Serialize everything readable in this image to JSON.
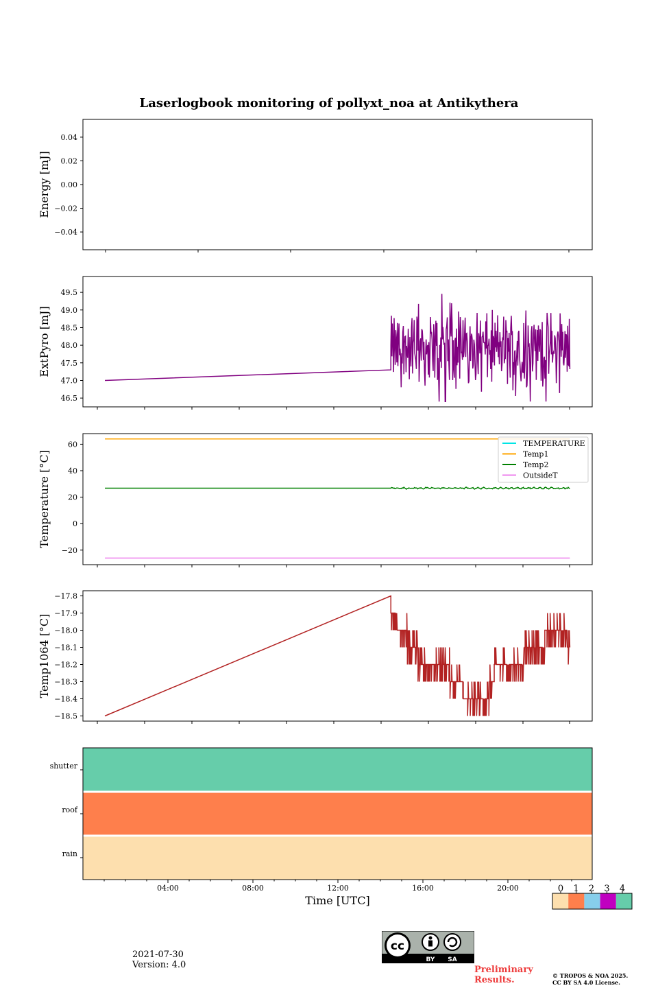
{
  "figure_title": "Laserlogbook monitoring of pollyxt_noa at Antikythera",
  "footer": {
    "date": "2021-07-30",
    "version": "Version: 4.0",
    "preliminary_line1": "Preliminary",
    "preliminary_line2": "Results.",
    "copyright_line1": "© TROPOS & NOA 2025.",
    "copyright_line2": "CC BY SA 4.0 License.",
    "license_badge": {
      "icon": "cc-by-sa-icon",
      "labels": [
        "BY",
        "SA"
      ]
    }
  },
  "colors": {
    "extpyro": "#800080",
    "temperature": "#00e5e5",
    "temp1": "#ffa500",
    "temp2": "#008000",
    "outsideT": "#ee82ee",
    "temp1064": "#b22222",
    "status_0": "#fddfae",
    "status_1": "#fe7f4c",
    "status_2": "#87ceeb",
    "status_3": "#c000c0",
    "status_4": "#66cdaa"
  },
  "chart_data": [
    {
      "type": "line",
      "name": "energy",
      "ylabel": "Energy [mJ]",
      "ylim": [
        -0.055,
        0.055
      ],
      "yticks": [
        0.04,
        0.02,
        0.0,
        -0.02,
        -0.04
      ],
      "ytick_labels": [
        "0.04",
        "0.02",
        "0.00",
        "−0.02",
        "−0.04"
      ],
      "xticks_hours": [
        4,
        8,
        12,
        16,
        20
      ],
      "series": []
    },
    {
      "type": "line",
      "name": "extpyro",
      "ylabel": "ExtPyro [mJ]",
      "ylim": [
        46.25,
        49.95
      ],
      "yticks": [
        49.5,
        49.0,
        48.5,
        48.0,
        47.5,
        47.0,
        46.5
      ],
      "ytick_labels": [
        "49.5",
        "49.0",
        "48.5",
        "48.0",
        "47.5",
        "47.0",
        "46.5"
      ],
      "x_hours_range": [
        1.08,
        22.9
      ],
      "start": {
        "x_hour": 1.08,
        "y": 47.0
      },
      "gap_end": {
        "x_hour": 14.5,
        "y": 47.3
      },
      "noisy_segment": {
        "x_start_hour": 14.5,
        "x_end_hour": 22.9,
        "mean": 47.9,
        "min": 46.4,
        "max": 49.8
      }
    },
    {
      "type": "line",
      "name": "temperature",
      "ylabel": "Temperature [°C]",
      "ylim": [
        -31,
        68
      ],
      "yticks": [
        60,
        40,
        20,
        0,
        -20
      ],
      "ytick_labels": [
        "60",
        "40",
        "20",
        "0",
        "−20"
      ],
      "legend_position": "top-right",
      "series": [
        {
          "name": "TEMPERATURE",
          "color_key": "temperature",
          "values": []
        },
        {
          "name": "Temp1",
          "color_key": "temp1",
          "x_hours": [
            1.08,
            22.9
          ],
          "values": [
            64,
            64
          ]
        },
        {
          "name": "Temp2",
          "color_key": "temp2",
          "x_hours": [
            1.08,
            14.5,
            22.9
          ],
          "values": [
            26.8,
            26.8,
            26.8
          ],
          "noise": 0.8
        },
        {
          "name": "OutsideT",
          "color_key": "outsideT",
          "x_hours": [
            1.08,
            22.9
          ],
          "values": [
            -26,
            -26
          ]
        }
      ]
    },
    {
      "type": "line",
      "name": "temp1064",
      "ylabel": "Temp1064 [°C]",
      "ylim": [
        -18.53,
        -17.77
      ],
      "yticks": [
        -17.8,
        -17.9,
        -18.0,
        -18.1,
        -18.2,
        -18.3,
        -18.4,
        -18.5
      ],
      "ytick_labels": [
        "−17.8",
        "−17.9",
        "−18.0",
        "−18.1",
        "−18.2",
        "−18.3",
        "−18.4",
        "−18.5"
      ],
      "trend_points": [
        [
          1.08,
          -18.5
        ],
        [
          14.5,
          -17.8
        ],
        [
          14.5,
          -17.9
        ],
        [
          15.0,
          -18.0
        ],
        [
          15.5,
          -18.1
        ],
        [
          16.0,
          -18.2
        ],
        [
          17.0,
          -18.2
        ],
        [
          17.5,
          -18.3
        ],
        [
          18.3,
          -18.4
        ],
        [
          19.0,
          -18.4
        ],
        [
          19.5,
          -18.2
        ],
        [
          20.5,
          -18.2
        ],
        [
          21.0,
          -18.1
        ],
        [
          21.5,
          -18.1
        ],
        [
          22.0,
          -18.0
        ],
        [
          22.6,
          -18.0
        ],
        [
          22.9,
          -18.1
        ]
      ]
    },
    {
      "type": "heatmap",
      "name": "status",
      "rows": [
        "shutter",
        "roof",
        "rain"
      ],
      "row_values": [
        4,
        1,
        0
      ],
      "xlabel": "Time [UTC]",
      "xticks": [
        "04:00",
        "08:00",
        "12:00",
        "16:00",
        "20:00"
      ],
      "xticks_hours": [
        4,
        8,
        12,
        16,
        20
      ],
      "colorbar": {
        "labels": [
          "0",
          "1",
          "2",
          "3",
          "4"
        ],
        "color_keys": [
          "status_0",
          "status_1",
          "status_2",
          "status_3",
          "status_4"
        ]
      }
    }
  ]
}
